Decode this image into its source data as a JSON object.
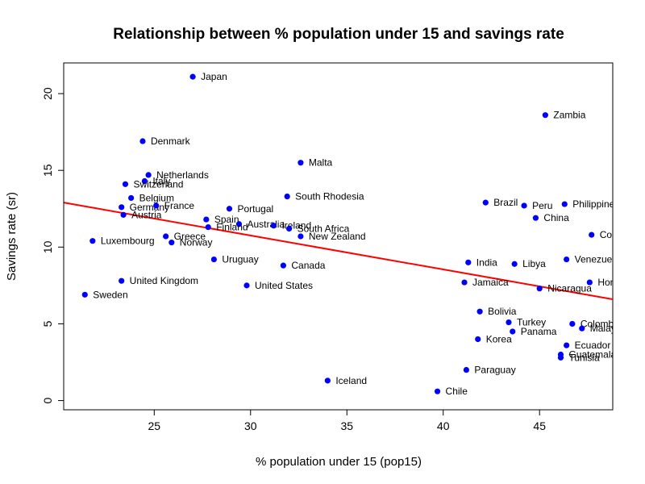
{
  "chart_data": {
    "type": "scatter",
    "title": "Relationship between % population under 15 and savings rate",
    "xlabel": "% population under 15 (pop15)",
    "ylabel": "Savings rate (sr)",
    "xlim": [
      20.3,
      48.8
    ],
    "ylim": [
      -0.6,
      22.0
    ],
    "x_ticks": [
      25,
      30,
      35,
      40,
      45
    ],
    "y_ticks": [
      0,
      5,
      10,
      15,
      20
    ],
    "grid": false,
    "point_color": "#0000ff",
    "line_color": "#ff0000",
    "regression_line": {
      "x": [
        20.3,
        48.8
      ],
      "y": [
        12.9,
        6.6
      ]
    },
    "points": [
      {
        "x": 27.0,
        "y": 21.1,
        "label": "Japan"
      },
      {
        "x": 45.3,
        "y": 18.6,
        "label": "Zambia"
      },
      {
        "x": 24.4,
        "y": 16.9,
        "label": "Denmark"
      },
      {
        "x": 32.6,
        "y": 15.5,
        "label": "Malta"
      },
      {
        "x": 24.7,
        "y": 14.7,
        "label": "Netherlands"
      },
      {
        "x": 24.5,
        "y": 14.3,
        "label": "Italy"
      },
      {
        "x": 23.5,
        "y": 14.1,
        "label": "Switzerland"
      },
      {
        "x": 31.9,
        "y": 13.3,
        "label": "South Rhodesia"
      },
      {
        "x": 23.8,
        "y": 13.2,
        "label": "Belgium"
      },
      {
        "x": 42.2,
        "y": 12.9,
        "label": "Brazil"
      },
      {
        "x": 44.2,
        "y": 12.7,
        "label": "Peru"
      },
      {
        "x": 46.3,
        "y": 12.8,
        "label": "Philippines"
      },
      {
        "x": 23.3,
        "y": 12.6,
        "label": "Germany"
      },
      {
        "x": 25.1,
        "y": 12.7,
        "label": "France"
      },
      {
        "x": 28.9,
        "y": 12.5,
        "label": "Portugal"
      },
      {
        "x": 23.4,
        "y": 12.1,
        "label": "Austria"
      },
      {
        "x": 44.8,
        "y": 11.9,
        "label": "China"
      },
      {
        "x": 27.7,
        "y": 11.8,
        "label": "Spain"
      },
      {
        "x": 29.4,
        "y": 11.5,
        "label": "Australia"
      },
      {
        "x": 31.2,
        "y": 11.4,
        "label": "Ireland"
      },
      {
        "x": 27.8,
        "y": 11.3,
        "label": "Finland"
      },
      {
        "x": 32.0,
        "y": 11.2,
        "label": "South Africa"
      },
      {
        "x": 32.6,
        "y": 10.7,
        "label": "New Zealand"
      },
      {
        "x": 47.7,
        "y": 10.8,
        "label": "Colombia"
      },
      {
        "x": 25.6,
        "y": 10.7,
        "label": "Greece"
      },
      {
        "x": 21.8,
        "y": 10.4,
        "label": "Luxembourg"
      },
      {
        "x": 25.9,
        "y": 10.3,
        "label": "Norway"
      },
      {
        "x": 28.1,
        "y": 9.2,
        "label": "Uruguay"
      },
      {
        "x": 46.4,
        "y": 9.2,
        "label": "Venezuela"
      },
      {
        "x": 41.3,
        "y": 9.0,
        "label": "India"
      },
      {
        "x": 43.7,
        "y": 8.9,
        "label": "Libya"
      },
      {
        "x": 31.7,
        "y": 8.8,
        "label": "Canada"
      },
      {
        "x": 23.3,
        "y": 7.8,
        "label": "United Kingdom"
      },
      {
        "x": 41.1,
        "y": 7.7,
        "label": "Jamaica"
      },
      {
        "x": 47.6,
        "y": 7.7,
        "label": "Honduras"
      },
      {
        "x": 29.8,
        "y": 7.5,
        "label": "United States"
      },
      {
        "x": 45.0,
        "y": 7.3,
        "label": "Nicaragua"
      },
      {
        "x": 21.4,
        "y": 6.9,
        "label": "Sweden"
      },
      {
        "x": 41.9,
        "y": 5.8,
        "label": "Bolivia"
      },
      {
        "x": 43.4,
        "y": 5.1,
        "label": "Turkey"
      },
      {
        "x": 46.7,
        "y": 5.0,
        "label": "Colombia"
      },
      {
        "x": 47.2,
        "y": 4.7,
        "label": "Malaysia"
      },
      {
        "x": 43.6,
        "y": 4.5,
        "label": "Panama"
      },
      {
        "x": 41.8,
        "y": 4.0,
        "label": "Korea"
      },
      {
        "x": 46.4,
        "y": 3.6,
        "label": "Ecuador"
      },
      {
        "x": 46.1,
        "y": 3.0,
        "label": "Guatemala"
      },
      {
        "x": 46.1,
        "y": 2.8,
        "label": "Tunisia"
      },
      {
        "x": 41.2,
        "y": 2.0,
        "label": "Paraguay"
      },
      {
        "x": 34.0,
        "y": 1.3,
        "label": "Iceland"
      },
      {
        "x": 39.7,
        "y": 0.6,
        "label": "Chile"
      }
    ]
  }
}
